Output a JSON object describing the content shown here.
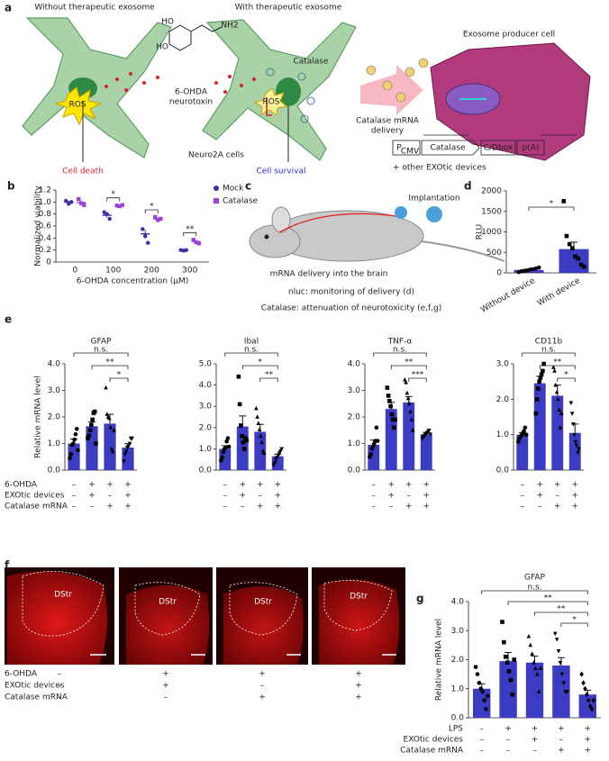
{
  "diagram_a": {
    "panel": "a",
    "left_title": "Without therapeutic exosome",
    "right_title": "With therapeutic exosome",
    "producer": "Exosome producer cell",
    "structure": [
      "HO",
      "HO",
      "NH2"
    ],
    "toxin": [
      "6-OHDA",
      "neurotoxin"
    ],
    "catalase": "Catalase",
    "ros": [
      "ROS",
      "ROS"
    ],
    "cells": "Neuro2A cells",
    "delivery": [
      "Catalase mRNA",
      "delivery"
    ],
    "death": "Cell death",
    "survival": "Cell survival",
    "construct": {
      "promoter": "P",
      "promoter_sub": "CMV",
      "parts": [
        "Catalase",
        "C/Dbox",
        "p(A)"
      ]
    },
    "devices": "+ other EXOtic devices"
  },
  "diagram_c": {
    "panel": "c",
    "implant": "Implantation",
    "route": "mRNA delivery into the brain",
    "notes": [
      "nluc: monitoring of delivery (d)",
      "Catalase: attenuation of neurotoxicity (e,f,g)"
    ]
  },
  "chart_data": [
    {
      "type": "dot",
      "panel": "b",
      "categories": [
        "0",
        "100",
        "200",
        "300"
      ],
      "xlabel": "6-OHDA concentration (μM)",
      "ylabel": "Normalized viability",
      "ylim": [
        0,
        1.2
      ],
      "yticks": [
        0,
        0.2,
        0.4,
        0.6,
        0.8,
        {
          "value": 1,
          "label": "1.0"
        },
        1.2
      ],
      "significance": [
        "*",
        "*",
        "**"
      ],
      "series": [
        {
          "name": "Mock",
          "color": "#3a2fa8",
          "values": [
            1.0,
            0.78,
            0.47,
            0.2
          ],
          "errors": [
            0.02,
            0.04,
            0.07,
            0.01
          ],
          "points": [
            [
              1.02,
              0.97,
              1.0
            ],
            [
              0.83,
              0.8,
              0.72
            ],
            [
              0.55,
              0.43,
              0.32
            ],
            [
              0.2,
              0.19,
              0.2
            ]
          ]
        },
        {
          "name": "Catalase",
          "color": "#a040d8",
          "values": [
            0.99,
            0.94,
            0.72,
            0.34
          ],
          "errors": [
            0.03,
            0.01,
            0.02,
            0.02
          ],
          "points": [
            [
              1.05,
              0.98,
              0.95
            ],
            [
              0.94,
              0.93,
              0.95
            ],
            [
              0.75,
              0.7,
              0.72
            ],
            [
              0.37,
              0.33,
              0.31
            ]
          ]
        }
      ]
    },
    {
      "type": "bar",
      "panel": "d",
      "categories": [
        "Without device",
        "With device"
      ],
      "ylabel": "RLU",
      "ylim": [
        0,
        2000
      ],
      "yticks": [
        0,
        500,
        1000,
        1500,
        2000
      ],
      "color": "#3b3bc4",
      "brackets": [
        "*"
      ],
      "values": [
        70,
        580
      ],
      "errors": [
        20,
        170
      ],
      "points": [
        [
          20,
          40,
          50,
          60,
          80,
          90,
          110,
          130
        ],
        [
          1750,
          900,
          700,
          600,
          400,
          350,
          200,
          150
        ]
      ]
    },
    {
      "type": "bar",
      "title": "GFAP",
      "ylabel": "Relative mRNA level",
      "ylim": [
        0,
        4
      ],
      "yticks": [
        {
          "value": 0,
          "label": "0.0"
        },
        {
          "value": 1,
          "label": "1.0"
        },
        {
          "value": 2,
          "label": "2.0"
        },
        {
          "value": 3,
          "label": "3.0"
        },
        {
          "value": 4,
          "label": "4.0"
        }
      ],
      "color": "#3b3bc4",
      "brackets": [
        "n.s.",
        "**",
        "*"
      ],
      "values": [
        1.0,
        1.65,
        1.75,
        0.85
      ],
      "errors": [
        0.17,
        0.16,
        0.35,
        0.14
      ],
      "points": [
        [
          0.45,
          0.6,
          0.95,
          1.0,
          1.15,
          1.35,
          1.55,
          0.75
        ],
        [
          1.2,
          1.3,
          1.5,
          1.7,
          1.9,
          2.15,
          2.2,
          1.0
        ],
        [
          3.1,
          2.1,
          2.0,
          1.95,
          1.6,
          0.8,
          0.7,
          1.5
        ],
        [
          0.35,
          0.6,
          0.7,
          0.85,
          0.9,
          1.0,
          1.2,
          1.2
        ]
      ]
    },
    {
      "type": "bar",
      "title": "Ibal",
      "ylim": [
        0,
        5
      ],
      "yticks": [
        {
          "value": 0,
          "label": "0.0"
        },
        {
          "value": 1,
          "label": "1.0"
        },
        {
          "value": 2,
          "label": "2.0"
        },
        {
          "value": 3,
          "label": "3.0"
        },
        {
          "value": 4,
          "label": "4.0"
        },
        {
          "value": 5,
          "label": "5.0"
        }
      ],
      "color": "#3b3bc4",
      "brackets": [
        "n.s.",
        "*",
        "**"
      ],
      "values": [
        1.0,
        2.05,
        1.8,
        0.65
      ],
      "errors": [
        0.15,
        0.5,
        0.35,
        0.1
      ],
      "points": [
        [
          0.45,
          0.6,
          0.85,
          1.0,
          1.05,
          1.35,
          1.5,
          1.1
        ],
        [
          4.4,
          3.1,
          2.1,
          1.6,
          1.3,
          1.0,
          1.5,
          1.4
        ],
        [
          2.9,
          2.5,
          2.2,
          1.9,
          1.6,
          1.3,
          0.9,
          0.8
        ],
        [
          0.25,
          0.35,
          0.5,
          0.6,
          0.7,
          0.8,
          0.9,
          1.0
        ]
      ]
    },
    {
      "type": "bar",
      "title": "TNF-α",
      "ylim": [
        0,
        4
      ],
      "yticks": [
        {
          "value": 0,
          "label": "0.0"
        },
        {
          "value": 1,
          "label": "1.0"
        },
        {
          "value": 2,
          "label": "2.0"
        },
        {
          "value": 3,
          "label": "3.0"
        },
        {
          "value": 4,
          "label": "4.0"
        }
      ],
      "color": "#3b3bc4",
      "brackets": [
        "n.s.",
        "**",
        "***"
      ],
      "values": [
        0.95,
        2.3,
        2.55,
        1.35
      ],
      "errors": [
        0.18,
        0.25,
        0.22,
        0.07
      ],
      "points": [
        [
          0.5,
          0.6,
          0.8,
          0.9,
          1.0,
          1.1,
          1.6,
          1.1
        ],
        [
          3.1,
          2.8,
          2.6,
          2.4,
          2.1,
          1.9,
          1.6,
          1.9
        ],
        [
          3.4,
          3.3,
          2.9,
          2.7,
          2.5,
          2.2,
          1.9,
          1.5
        ],
        [
          1.2,
          1.25,
          1.3,
          1.35,
          1.4,
          1.45,
          1.5,
          1.35
        ]
      ]
    },
    {
      "type": "bar",
      "title": "CD11b",
      "ylim": [
        0,
        3
      ],
      "yticks": [
        {
          "value": 0,
          "label": "0.0"
        },
        {
          "value": 1,
          "label": "1.0"
        },
        {
          "value": 2,
          "label": "2.0"
        },
        {
          "value": 3,
          "label": "3.0"
        }
      ],
      "color": "#3b3bc4",
      "brackets": [
        "n.s.",
        "**",
        "*"
      ],
      "values": [
        1.0,
        2.45,
        2.1,
        1.05
      ],
      "errors": [
        0.06,
        0.2,
        0.3,
        0.25
      ],
      "points": [
        [
          0.8,
          0.9,
          0.95,
          1.0,
          1.05,
          1.1,
          1.2,
          1.0
        ],
        [
          1.6,
          2.0,
          2.3,
          2.5,
          2.6,
          2.7,
          2.8,
          3.0
        ],
        [
          2.9,
          2.8,
          2.4,
          2.2,
          2.0,
          1.7,
          1.2,
          1.6
        ],
        [
          1.9,
          1.6,
          1.3,
          1.0,
          0.8,
          0.7,
          0.5,
          0.6
        ]
      ]
    },
    {
      "type": "bar",
      "panel": "g",
      "title": "GFAP",
      "ylabel": "Relative mRNA level",
      "ylim": [
        0,
        4
      ],
      "yticks": [
        {
          "value": 0,
          "label": "0.0"
        },
        {
          "value": 1,
          "label": "1.0"
        },
        {
          "value": 2,
          "label": "2.0"
        },
        {
          "value": 3,
          "label": "3.0"
        },
        {
          "value": 4,
          "label": "4.0"
        }
      ],
      "color": "#3b3bc4",
      "brackets": [
        "n.s.",
        "**",
        "**",
        "*"
      ],
      "values": [
        1.0,
        1.95,
        1.9,
        1.8,
        0.8
      ],
      "errors": [
        0.17,
        0.3,
        0.22,
        0.27,
        0.15
      ],
      "points": [
        [
          1.75,
          1.5,
          1.2,
          1.0,
          0.9,
          0.6,
          0.3,
          0.75
        ],
        [
          3.3,
          2.6,
          2.1,
          1.9,
          1.6,
          1.3,
          0.8,
          2.0
        ],
        [
          2.8,
          2.5,
          2.2,
          1.9,
          1.7,
          1.5,
          0.9,
          1.7
        ],
        [
          2.9,
          2.7,
          2.3,
          1.9,
          1.5,
          1.2,
          0.9,
          0.9
        ],
        [
          1.5,
          1.2,
          1.0,
          0.8,
          0.6,
          0.4,
          0.3,
          0.6
        ]
      ],
      "conditions": {
        "rows": [
          {
            "label": "LPS",
            "marks": [
              "–",
              "+",
              "+",
              "+",
              "+"
            ]
          },
          {
            "label": "EXOtic devices",
            "marks": [
              "–",
              "–",
              "+",
              "–",
              "+"
            ]
          },
          {
            "label": "Catalase mRNA",
            "marks": [
              "–",
              "–",
              "–",
              "+",
              "+"
            ]
          }
        ]
      }
    }
  ],
  "conditions_e": {
    "panel": "e",
    "rows": [
      {
        "label": "6-OHDA",
        "marks": [
          "–",
          "+",
          "+",
          "+"
        ]
      },
      {
        "label": "EXOtic devices",
        "marks": [
          "–",
          "+",
          "–",
          "+"
        ]
      },
      {
        "label": "Catalase mRNA",
        "marks": [
          "–",
          "–",
          "+",
          "+"
        ]
      }
    ]
  },
  "panel_f": {
    "panel": "f",
    "regions": [
      "DStr",
      "DStr",
      "DStr",
      "DStr"
    ],
    "rows": [
      {
        "label": "6-OHDA",
        "marks": [
          "–",
          "+",
          "+",
          "+"
        ]
      },
      {
        "label": "EXOtic devices",
        "marks": [
          "–",
          "+",
          "–",
          "+"
        ]
      },
      {
        "label": "Catalase mRNA",
        "marks": [
          "–",
          "–",
          "+",
          "+"
        ]
      }
    ]
  }
}
